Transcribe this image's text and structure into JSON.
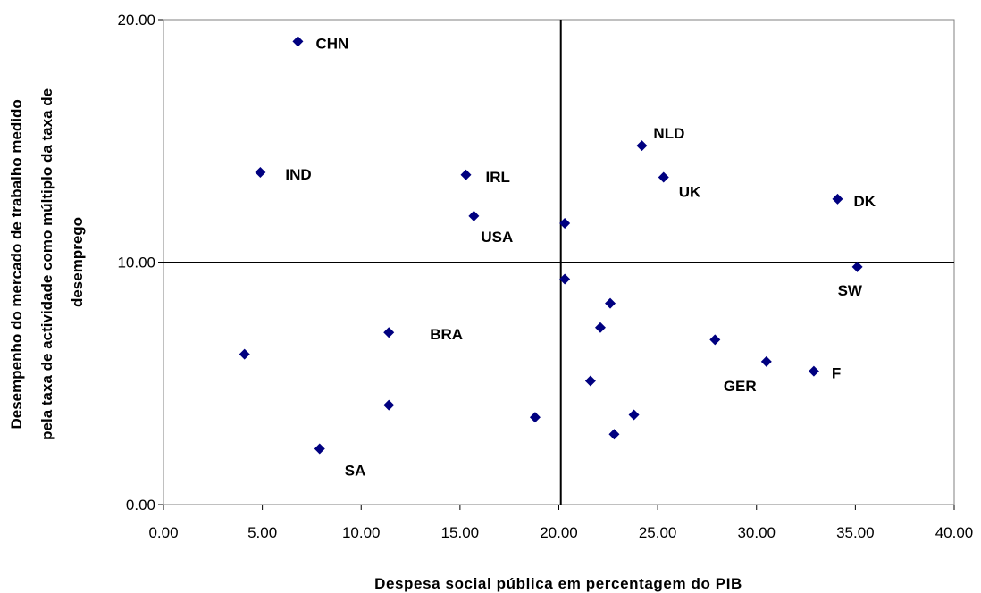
{
  "chart_data": {
    "type": "scatter",
    "xlabel": "Despesa social pública em percentagem do PIB",
    "ylabel_lines": [
      "Desempenho do mercado de trabalho medido",
      "pela taxa de actividade como múltiplo da taxa de",
      "desemprego"
    ],
    "xlim": [
      0,
      40
    ],
    "ylim": [
      0,
      20
    ],
    "x_ticks": [
      "0.00",
      "5.00",
      "10.00",
      "15.00",
      "20.00",
      "25.00",
      "30.00",
      "35.00",
      "40.00"
    ],
    "y_ticks": [
      "0.00",
      "10.00",
      "20.00"
    ],
    "x_tick_values": [
      0,
      5,
      10,
      15,
      20,
      25,
      30,
      35,
      40
    ],
    "y_tick_values": [
      0,
      10,
      20
    ],
    "reference_lines": {
      "x": 20.1,
      "y": 10.0
    },
    "marker_color": "#000080",
    "points": [
      {
        "x": 6.8,
        "y": 19.1,
        "label": "CHN"
      },
      {
        "x": 4.9,
        "y": 13.7,
        "label": "IND"
      },
      {
        "x": 15.3,
        "y": 13.6,
        "label": "IRL"
      },
      {
        "x": 15.7,
        "y": 11.9,
        "label": "USA"
      },
      {
        "x": 24.2,
        "y": 14.8,
        "label": "NLD"
      },
      {
        "x": 25.3,
        "y": 13.5,
        "label": "UK"
      },
      {
        "x": 34.1,
        "y": 12.6,
        "label": "DK"
      },
      {
        "x": 35.1,
        "y": 9.8,
        "label": "SW"
      },
      {
        "x": 11.4,
        "y": 7.1,
        "label": "BRA"
      },
      {
        "x": 30.5,
        "y": 5.9,
        "label": "GER"
      },
      {
        "x": 32.9,
        "y": 5.5,
        "label": "F"
      },
      {
        "x": 7.9,
        "y": 2.3,
        "label": "SA"
      },
      {
        "x": 4.1,
        "y": 6.2,
        "label": ""
      },
      {
        "x": 11.4,
        "y": 4.1,
        "label": ""
      },
      {
        "x": 18.8,
        "y": 3.6,
        "label": ""
      },
      {
        "x": 20.3,
        "y": 11.6,
        "label": ""
      },
      {
        "x": 20.3,
        "y": 9.3,
        "label": ""
      },
      {
        "x": 22.6,
        "y": 8.3,
        "label": ""
      },
      {
        "x": 22.1,
        "y": 7.3,
        "label": ""
      },
      {
        "x": 27.9,
        "y": 6.8,
        "label": ""
      },
      {
        "x": 21.6,
        "y": 5.1,
        "label": ""
      },
      {
        "x": 23.8,
        "y": 3.7,
        "label": ""
      },
      {
        "x": 22.8,
        "y": 2.9,
        "label": ""
      }
    ]
  }
}
